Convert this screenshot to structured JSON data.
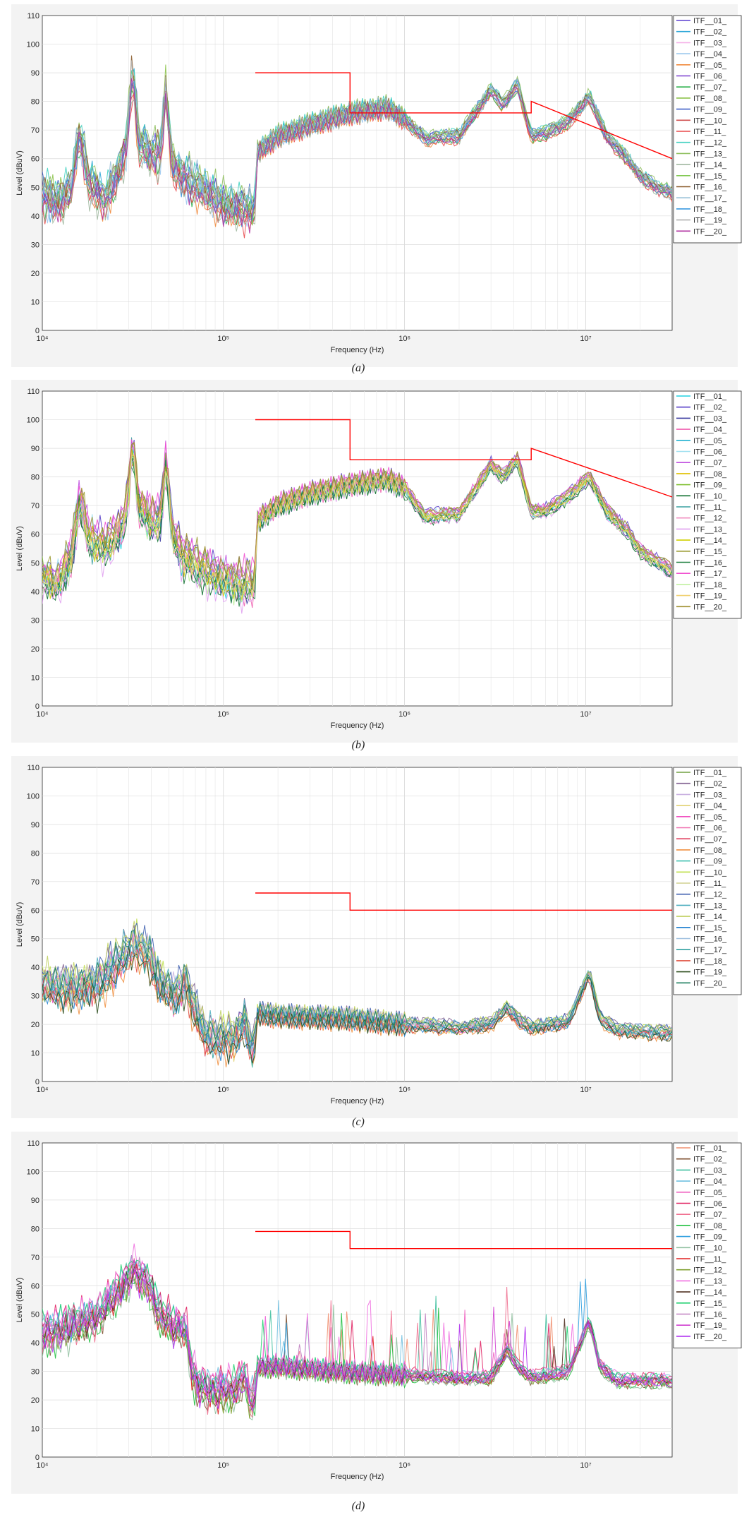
{
  "figure": {
    "captions": [
      "(a)",
      "(b)",
      "(c)",
      "(d)"
    ]
  },
  "chart_data": [
    {
      "type": "line",
      "panel": "a",
      "xlabel": "Frequency (Hz)",
      "ylabel": "Level (dBuV)",
      "xscale": "log",
      "xlim": [
        10000,
        30000000
      ],
      "ylim": [
        0,
        110
      ],
      "x_ticks": [
        10000,
        100000,
        1000000,
        10000000
      ],
      "x_tick_labels": [
        "10^4",
        "10^5",
        "10^6",
        "10^7"
      ],
      "y_ticks": [
        0,
        10,
        20,
        30,
        40,
        50,
        60,
        70,
        80,
        90,
        100,
        110
      ],
      "grid": true,
      "legend_placement": "right-outside",
      "legend": [
        "ITF__01_",
        "ITF__02_",
        "ITF__03_",
        "ITF__04_",
        "ITF__05_",
        "ITF__06_",
        "ITF__07_",
        "ITF__08_",
        "ITF__09_",
        "ITF__10_",
        "ITF__11_",
        "ITF__12_",
        "ITF__13_",
        "ITF__14_",
        "ITF__15_",
        "ITF__16_",
        "ITF__17_",
        "ITF__18_",
        "ITF__19_",
        "ITF__20_"
      ],
      "colors": [
        "#5a3fd0",
        "#2aa6d8",
        "#f5b0e8",
        "#9bc9ee",
        "#f08a3c",
        "#7a3fd0",
        "#2ab04a",
        "#8bc34a",
        "#4060c8",
        "#d05050",
        "#e8484a",
        "#40d0c0",
        "#90c060",
        "#a0b8a0",
        "#80c850",
        "#8a5a2a",
        "#98c0d8",
        "#3a9ae0",
        "#b0b0b0",
        "#b030a0"
      ],
      "limit_line": {
        "color": "#ff0000",
        "x": [
          150000,
          500000,
          500000,
          5000000,
          5000000,
          30000000
        ],
        "y": [
          90,
          90,
          76,
          76,
          80,
          60
        ]
      },
      "profile": [
        [
          10000,
          48
        ],
        [
          12000,
          45
        ],
        [
          14500,
          50
        ],
        [
          16000,
          70
        ],
        [
          18000,
          52
        ],
        [
          22000,
          46
        ],
        [
          26000,
          55
        ],
        [
          29000,
          64
        ],
        [
          31500,
          92
        ],
        [
          34000,
          66
        ],
        [
          40000,
          62
        ],
        [
          45000,
          62
        ],
        [
          48000,
          85
        ],
        [
          52000,
          58
        ],
        [
          60000,
          54
        ],
        [
          75000,
          50
        ],
        [
          100000,
          44
        ],
        [
          149000,
          42
        ],
        [
          150000,
          62
        ],
        [
          200000,
          68
        ],
        [
          300000,
          72
        ],
        [
          500000,
          76
        ],
        [
          800000,
          78
        ],
        [
          1000000,
          74
        ],
        [
          1300000,
          67
        ],
        [
          2000000,
          68
        ],
        [
          3000000,
          84
        ],
        [
          3500000,
          79
        ],
        [
          4200000,
          86
        ],
        [
          5000000,
          68
        ],
        [
          6000000,
          69
        ],
        [
          8000000,
          73
        ],
        [
          10500000,
          82
        ],
        [
          13000000,
          68
        ],
        [
          17000000,
          60
        ],
        [
          20000000,
          54
        ],
        [
          25000000,
          50
        ],
        [
          30000000,
          48
        ]
      ]
    },
    {
      "type": "line",
      "panel": "b",
      "xlabel": "Frequency (Hz)",
      "ylabel": "Level (dBuV)",
      "xscale": "log",
      "xlim": [
        10000,
        30000000
      ],
      "ylim": [
        0,
        110
      ],
      "x_ticks": [
        10000,
        100000,
        1000000,
        10000000
      ],
      "x_tick_labels": [
        "10^4",
        "10^5",
        "10^6",
        "10^7"
      ],
      "y_ticks": [
        0,
        10,
        20,
        30,
        40,
        50,
        60,
        70,
        80,
        90,
        100,
        110
      ],
      "grid": true,
      "legend_placement": "right-outside",
      "legend": [
        "ITF__01_",
        "ITF__02_",
        "ITF__03_",
        "ITF__04_",
        "ITF__05_",
        "ITF__06_",
        "ITF__07_",
        "ITF__08_",
        "ITF__09_",
        "ITF__10_",
        "ITF__11_",
        "ITF__12_",
        "ITF__13_",
        "ITF__14_",
        "ITF__15_",
        "ITF__16_",
        "ITF__17_",
        "ITF__18_",
        "ITF__19_",
        "ITF__20_"
      ],
      "colors": [
        "#20d0e0",
        "#5a40c8",
        "#3a3aa0",
        "#f060b0",
        "#20b0d0",
        "#a0e0f0",
        "#c050e0",
        "#e0c000",
        "#80c030",
        "#107030",
        "#3aa0a0",
        "#f090c0",
        "#e0a0f0",
        "#d0d000",
        "#9a9a30",
        "#208040",
        "#f050d0",
        "#c0f0a0",
        "#f0d070",
        "#a09030"
      ],
      "limit_line": {
        "color": "#ff0000",
        "x": [
          150000,
          500000,
          500000,
          5000000,
          5000000,
          30000000
        ],
        "y": [
          100,
          100,
          86,
          86,
          90,
          73
        ]
      },
      "profile": [
        [
          10000,
          45
        ],
        [
          12000,
          42
        ],
        [
          14500,
          52
        ],
        [
          16000,
          72
        ],
        [
          18000,
          58
        ],
        [
          22000,
          55
        ],
        [
          26000,
          60
        ],
        [
          29000,
          66
        ],
        [
          31500,
          93
        ],
        [
          34000,
          70
        ],
        [
          40000,
          64
        ],
        [
          45000,
          65
        ],
        [
          48000,
          86
        ],
        [
          52000,
          60
        ],
        [
          60000,
          52
        ],
        [
          75000,
          48
        ],
        [
          100000,
          44
        ],
        [
          149000,
          42
        ],
        [
          150000,
          64
        ],
        [
          200000,
          70
        ],
        [
          300000,
          74
        ],
        [
          500000,
          77
        ],
        [
          800000,
          79
        ],
        [
          1000000,
          76
        ],
        [
          1300000,
          66
        ],
        [
          2000000,
          67
        ],
        [
          3000000,
          84
        ],
        [
          3500000,
          80
        ],
        [
          4200000,
          86
        ],
        [
          5000000,
          68
        ],
        [
          6000000,
          68
        ],
        [
          8000000,
          73
        ],
        [
          10500000,
          80
        ],
        [
          13000000,
          68
        ],
        [
          17000000,
          61
        ],
        [
          20000000,
          54
        ],
        [
          25000000,
          50
        ],
        [
          30000000,
          47
        ]
      ]
    },
    {
      "type": "line",
      "panel": "c",
      "xlabel": "Frequency (Hz)",
      "ylabel": "Level (dBuV)",
      "xscale": "log",
      "xlim": [
        10000,
        30000000
      ],
      "ylim": [
        0,
        110
      ],
      "x_ticks": [
        10000,
        100000,
        1000000,
        10000000
      ],
      "x_tick_labels": [
        "10^4",
        "10^5",
        "10^6",
        "10^7"
      ],
      "y_ticks": [
        0,
        10,
        20,
        30,
        40,
        50,
        60,
        70,
        80,
        90,
        100,
        110
      ],
      "grid": true,
      "legend_placement": "right-outside",
      "legend": [
        "ITF__01_",
        "ITF__02_",
        "ITF__03_",
        "ITF__04_",
        "ITF__05_",
        "ITF__06_",
        "ITF__07_",
        "ITF__08_",
        "ITF__09_",
        "ITF__10_",
        "ITF__11_",
        "ITF__12_",
        "ITF__13_",
        "ITF__14_",
        "ITF__15_",
        "ITF__16_",
        "ITF__17_",
        "ITF__18_",
        "ITF__19_",
        "ITF__20_"
      ],
      "colors": [
        "#70a040",
        "#806090",
        "#c8b0e0",
        "#e0d070",
        "#f050c0",
        "#f070b0",
        "#e04060",
        "#f09040",
        "#40c0b0",
        "#c0e050",
        "#d0d090",
        "#4060b0",
        "#50b0c0",
        "#c0d060",
        "#2080d0",
        "#a0c0e0",
        "#30a0a0",
        "#e05040",
        "#305020",
        "#208060"
      ],
      "limit_line": {
        "color": "#ff0000",
        "x": [
          150000,
          500000,
          500000,
          30000000
        ],
        "y": [
          66,
          66,
          60,
          60
        ]
      },
      "profile": [
        [
          10000,
          34
        ],
        [
          14000,
          33
        ],
        [
          20000,
          34
        ],
        [
          26000,
          42
        ],
        [
          32000,
          48
        ],
        [
          38000,
          45
        ],
        [
          45000,
          34
        ],
        [
          55000,
          30
        ],
        [
          62000,
          36
        ],
        [
          68000,
          26
        ],
        [
          80000,
          16
        ],
        [
          100000,
          15
        ],
        [
          120000,
          16
        ],
        [
          130000,
          22
        ],
        [
          140000,
          13
        ],
        [
          149000,
          12
        ],
        [
          150000,
          24
        ],
        [
          200000,
          23
        ],
        [
          500000,
          22
        ],
        [
          1000000,
          20
        ],
        [
          2000000,
          19
        ],
        [
          3000000,
          20
        ],
        [
          3700000,
          26
        ],
        [
          4200000,
          22
        ],
        [
          5000000,
          19
        ],
        [
          8000000,
          21
        ],
        [
          10500000,
          38
        ],
        [
          12000000,
          22
        ],
        [
          15000000,
          18
        ],
        [
          30000000,
          17
        ]
      ]
    },
    {
      "type": "line",
      "panel": "d",
      "xlabel": "Frequency (Hz)",
      "ylabel": "Level (dBuV)",
      "xscale": "log",
      "xlim": [
        10000,
        30000000
      ],
      "ylim": [
        0,
        110
      ],
      "x_ticks": [
        10000,
        100000,
        1000000,
        10000000
      ],
      "x_tick_labels": [
        "10^4",
        "10^5",
        "10^6",
        "10^7"
      ],
      "y_ticks": [
        0,
        10,
        20,
        30,
        40,
        50,
        60,
        70,
        80,
        90,
        100,
        110
      ],
      "grid": true,
      "legend_placement": "right-outside",
      "legend": [
        "ITF__01_",
        "ITF__02_",
        "ITF__03_",
        "ITF__04_",
        "ITF__05_",
        "ITF__06_",
        "ITF__07_",
        "ITF__08_",
        "ITF__09_",
        "ITF__10_",
        "ITF__11_",
        "ITF__12_",
        "ITF__13_",
        "ITF__14_",
        "ITF__15_",
        "ITF__16_",
        "ITF__19_",
        "ITF__20_"
      ],
      "colors": [
        "#f09070",
        "#805030",
        "#40c0a0",
        "#70c0e0",
        "#f060c0",
        "#e02060",
        "#f07090",
        "#20c040",
        "#30a0e0",
        "#90c0a0",
        "#e02020",
        "#80a030",
        "#f070e0",
        "#503020",
        "#20d070",
        "#c080c0",
        "#d040d0",
        "#b030f0"
      ],
      "limit_line": {
        "color": "#ff0000",
        "x": [
          150000,
          500000,
          500000,
          30000000
        ],
        "y": [
          79,
          79,
          73,
          73
        ]
      },
      "profile": [
        [
          10000,
          44
        ],
        [
          14000,
          46
        ],
        [
          20000,
          50
        ],
        [
          26000,
          58
        ],
        [
          32000,
          66
        ],
        [
          38000,
          62
        ],
        [
          45000,
          50
        ],
        [
          55000,
          46
        ],
        [
          62000,
          46
        ],
        [
          68000,
          28
        ],
        [
          80000,
          24
        ],
        [
          100000,
          24
        ],
        [
          120000,
          24
        ],
        [
          130000,
          30
        ],
        [
          140000,
          20
        ],
        [
          149000,
          20
        ],
        [
          150000,
          32
        ],
        [
          200000,
          32
        ],
        [
          500000,
          30
        ],
        [
          1000000,
          29
        ],
        [
          2000000,
          28
        ],
        [
          3000000,
          28
        ],
        [
          3700000,
          38
        ],
        [
          4200000,
          32
        ],
        [
          5000000,
          28
        ],
        [
          8000000,
          30
        ],
        [
          10500000,
          48
        ],
        [
          12000000,
          32
        ],
        [
          15000000,
          27
        ],
        [
          30000000,
          27
        ]
      ]
    }
  ]
}
